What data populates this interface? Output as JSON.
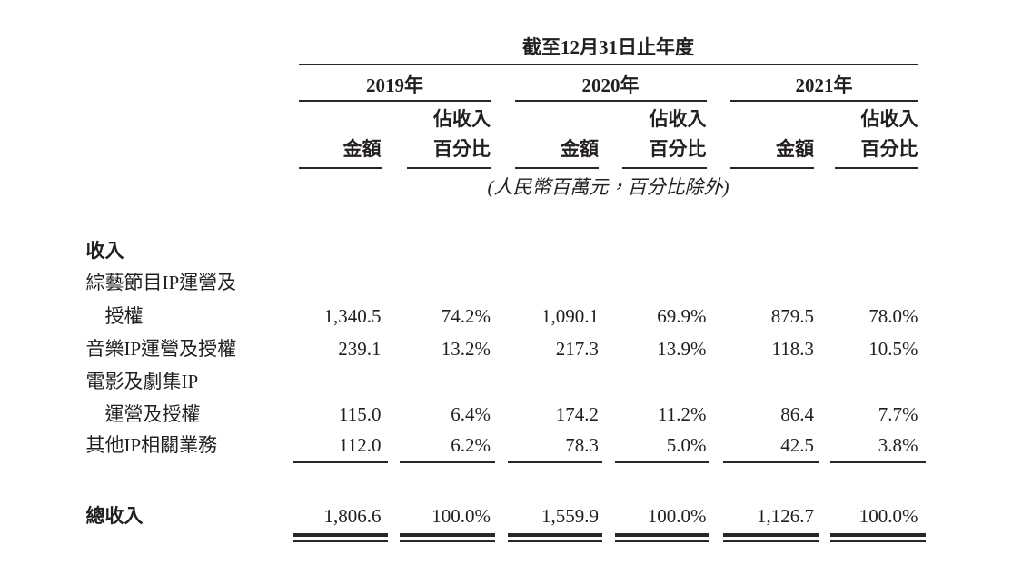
{
  "table": {
    "title": "截至12月31日止年度",
    "note": "(人民幣百萬元，百分比除外)",
    "year_groups": [
      {
        "year": "2019年",
        "amount_header": "金額",
        "pct_header_line1": "佔收入",
        "pct_header_line2": "百分比"
      },
      {
        "year": "2020年",
        "amount_header": "金額",
        "pct_header_line1": "佔收入",
        "pct_header_line2": "百分比"
      },
      {
        "year": "2021年",
        "amount_header": "金額",
        "pct_header_line1": "佔收入",
        "pct_header_line2": "百分比"
      }
    ],
    "rows": [
      {
        "label": "收入",
        "bold": true,
        "values": []
      },
      {
        "label": "綜藝節目IP運營及",
        "values": []
      },
      {
        "label": "授權",
        "indent": true,
        "values": [
          "1,340.5",
          "74.2%",
          "1,090.1",
          "69.9%",
          "879.5",
          "78.0%"
        ]
      },
      {
        "label": "音樂IP運營及授權",
        "values": [
          "239.1",
          "13.2%",
          "217.3",
          "13.9%",
          "118.3",
          "10.5%"
        ]
      },
      {
        "label": "電影及劇集IP",
        "values": []
      },
      {
        "label": "運營及授權",
        "indent": true,
        "values": [
          "115.0",
          "6.4%",
          "174.2",
          "11.2%",
          "86.4",
          "7.7%"
        ]
      },
      {
        "label": "其他IP相關業務",
        "values": [
          "112.0",
          "6.2%",
          "78.3",
          "5.0%",
          "42.5",
          "3.8%"
        ]
      },
      {
        "label": "總收入",
        "bold": true,
        "values": [
          "1,806.6",
          "100.0%",
          "1,559.9",
          "100.0%",
          "1,126.7",
          "100.0%"
        ]
      }
    ],
    "colors": {
      "text": "#231f20",
      "rule": "#2b2728",
      "background": "#ffffff"
    }
  }
}
